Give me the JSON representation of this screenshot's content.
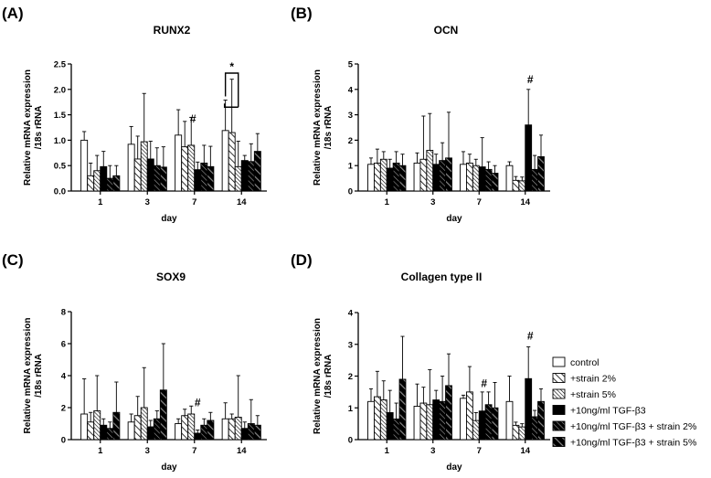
{
  "panel_labels": [
    "(A)",
    "(B)",
    "(C)",
    "(D)"
  ],
  "legend": {
    "entries": [
      {
        "label": "control",
        "pattern": "white"
      },
      {
        "label": "+strain 2%",
        "pattern": "hatch-light"
      },
      {
        "label": "+strain 5%",
        "pattern": "hatch-dense"
      },
      {
        "label": "+10ng/ml TGF-β3",
        "pattern": "black"
      },
      {
        "label": "+10ng/ml TGF-β3 + strain 2%",
        "pattern": "hatch-dark"
      },
      {
        "label": "+10ng/ml TGF-β3 + strain 5%",
        "pattern": "hatch-dark-wide"
      }
    ]
  },
  "chart_data": [
    {
      "type": "bar",
      "panel": "(A)",
      "title": "RUNX2",
      "xlabel": "day",
      "ylabel": [
        "Relative mRNA expression",
        "/18s rRNA"
      ],
      "ylim": [
        0,
        2.5
      ],
      "yticks": [
        "0.0",
        "0.5",
        "1.0",
        "1.5",
        "2.0",
        "2.5"
      ],
      "yticks_values": [
        0,
        0.5,
        1.0,
        1.5,
        2.0,
        2.5
      ],
      "categories": [
        "1",
        "3",
        "7",
        "14"
      ],
      "series": [
        {
          "name": "control",
          "values": [
            1.0,
            0.92,
            1.1,
            1.19
          ],
          "errors": [
            0.17,
            0.35,
            0.5,
            0.6
          ]
        },
        {
          "name": "+strain 2%",
          "values": [
            0.3,
            0.63,
            0.87,
            1.15
          ],
          "errors": [
            0.25,
            0.45,
            0.5,
            1.05
          ]
        },
        {
          "name": "+strain 5%",
          "values": [
            0.4,
            0.97,
            0.9,
            0.48
          ],
          "errors": [
            0.3,
            0.95,
            0.55,
            0.5
          ]
        },
        {
          "name": "+10ng/ml TGF-β3",
          "values": [
            0.48,
            0.63,
            0.42,
            0.6
          ],
          "errors": [
            0.3,
            0.35,
            0.15,
            0.1
          ]
        },
        {
          "name": "+10ng/ml TGF-β3 + strain 2%",
          "values": [
            0.25,
            0.5,
            0.55,
            0.58
          ],
          "errors": [
            0.25,
            0.35,
            0.35,
            0.35
          ]
        },
        {
          "name": "+10ng/ml TGF-β3 + strain 5%",
          "values": [
            0.3,
            0.47,
            0.48,
            0.78
          ],
          "errors": [
            0.2,
            0.4,
            0.4,
            0.35
          ]
        }
      ],
      "annotations": [
        {
          "text": "#",
          "category": "7",
          "series": 2,
          "y": 1.35
        },
        {
          "text": "*",
          "category": "14",
          "series": 0,
          "y": 2.5,
          "bracket": [
            0,
            2
          ]
        }
      ]
    },
    {
      "type": "bar",
      "panel": "(B)",
      "title": "OCN",
      "xlabel": "day",
      "ylabel": [
        "Relative mRNA expression",
        "/18s rRNA"
      ],
      "ylim": [
        0,
        5
      ],
      "yticks": [
        "0",
        "1",
        "2",
        "3",
        "4",
        "5"
      ],
      "yticks_values": [
        0,
        1,
        2,
        3,
        4,
        5
      ],
      "categories": [
        "1",
        "3",
        "7",
        "14"
      ],
      "series": [
        {
          "name": "control",
          "values": [
            1.05,
            1.1,
            1.05,
            1.0
          ],
          "errors": [
            0.25,
            0.4,
            0.5,
            0.15
          ]
        },
        {
          "name": "+strain 2%",
          "values": [
            1.1,
            1.25,
            1.1,
            0.42
          ],
          "errors": [
            0.55,
            1.7,
            0.35,
            0.15
          ]
        },
        {
          "name": "+strain 5%",
          "values": [
            1.25,
            1.6,
            1.0,
            0.4
          ],
          "errors": [
            0.3,
            1.45,
            0.25,
            0.15
          ]
        },
        {
          "name": "+10ng/ml TGF-β3",
          "values": [
            0.9,
            1.05,
            0.95,
            2.6
          ],
          "errors": [
            0.35,
            0.4,
            1.15,
            1.4
          ]
        },
        {
          "name": "+10ng/ml TGF-β3 + strain 2%",
          "values": [
            1.1,
            1.2,
            0.85,
            0.85
          ],
          "errors": [
            0.45,
            0.7,
            0.3,
            0.55
          ]
        },
        {
          "name": "+10ng/ml TGF-β3 + strain 5%",
          "values": [
            1.0,
            1.3,
            0.7,
            1.35
          ],
          "errors": [
            0.45,
            1.8,
            0.3,
            0.85
          ]
        }
      ],
      "annotations": [
        {
          "text": "#",
          "category": "14",
          "series": 3,
          "y": 4.25
        }
      ]
    },
    {
      "type": "bar",
      "panel": "(C)",
      "title": "SOX9",
      "xlabel": "day",
      "ylabel": [
        "Relative mRNA expression",
        "/18s rRNA"
      ],
      "ylim": [
        0,
        8
      ],
      "yticks": [
        "0",
        "2",
        "4",
        "6",
        "8"
      ],
      "yticks_values": [
        0,
        2,
        4,
        6,
        8
      ],
      "categories": [
        "1",
        "3",
        "7",
        "14"
      ],
      "series": [
        {
          "name": "control",
          "values": [
            1.6,
            1.1,
            1.0,
            1.3
          ],
          "errors": [
            2.2,
            0.5,
            0.3,
            1.0
          ]
        },
        {
          "name": "+strain 2%",
          "values": [
            1.1,
            1.5,
            1.5,
            1.3
          ],
          "errors": [
            0.6,
            1.2,
            0.4,
            0.3
          ]
        },
        {
          "name": "+strain 5%",
          "values": [
            1.8,
            2.0,
            1.6,
            1.4
          ],
          "errors": [
            2.2,
            2.5,
            0.5,
            2.6
          ]
        },
        {
          "name": "+10ng/ml TGF-β3",
          "values": [
            0.9,
            0.8,
            0.4,
            0.7
          ],
          "errors": [
            0.4,
            0.4,
            0.2,
            0.4
          ]
        },
        {
          "name": "+10ng/ml TGF-β3 + strain 2%",
          "values": [
            0.7,
            1.3,
            0.9,
            1.0
          ],
          "errors": [
            0.4,
            0.5,
            0.4,
            1.5
          ]
        },
        {
          "name": "+10ng/ml TGF-β3 + strain 5%",
          "values": [
            1.7,
            3.1,
            1.2,
            0.9
          ],
          "errors": [
            1.9,
            2.9,
            0.5,
            0.6
          ]
        }
      ],
      "annotations": [
        {
          "text": "#",
          "category": "7",
          "series": 3,
          "y": 2.1
        }
      ]
    },
    {
      "type": "bar",
      "panel": "(D)",
      "title": "Collagen type II",
      "xlabel": "day",
      "ylabel": [
        "Relative mRNA expression",
        "/18s rRNA"
      ],
      "ylim": [
        0,
        4
      ],
      "yticks": [
        "0",
        "1",
        "2",
        "3",
        "4"
      ],
      "yticks_values": [
        0,
        1,
        2,
        3,
        4
      ],
      "categories": [
        "1",
        "3",
        "7",
        "14"
      ],
      "series": [
        {
          "name": "control",
          "values": [
            1.2,
            1.05,
            1.3,
            1.2
          ],
          "errors": [
            0.4,
            0.7,
            0.1,
            0.8
          ]
        },
        {
          "name": "+strain 2%",
          "values": [
            1.35,
            1.15,
            1.5,
            0.45
          ],
          "errors": [
            0.8,
            0.5,
            0.8,
            0.1
          ]
        },
        {
          "name": "+strain 5%",
          "values": [
            1.25,
            1.1,
            0.6,
            0.4
          ],
          "errors": [
            0.6,
            1.1,
            0.25,
            0.1
          ]
        },
        {
          "name": "+10ng/ml TGF-β3",
          "values": [
            0.85,
            1.25,
            0.9,
            1.92
          ],
          "errors": [
            0.7,
            0.3,
            0.6,
            1.0
          ]
        },
        {
          "name": "+10ng/ml TGF-β3 + strain 2%",
          "values": [
            0.65,
            1.2,
            1.1,
            0.72
          ],
          "errors": [
            0.5,
            0.8,
            0.4,
            0.2
          ]
        },
        {
          "name": "+10ng/ml TGF-β3 + strain 5%",
          "values": [
            1.9,
            1.7,
            1.0,
            1.2
          ],
          "errors": [
            1.35,
            1.0,
            0.8,
            0.4
          ]
        }
      ],
      "annotations": [
        {
          "text": "#",
          "category": "7",
          "series": 3,
          "y": 1.65
        },
        {
          "text": "#",
          "category": "14",
          "series": 3,
          "y": 3.15
        }
      ]
    }
  ]
}
